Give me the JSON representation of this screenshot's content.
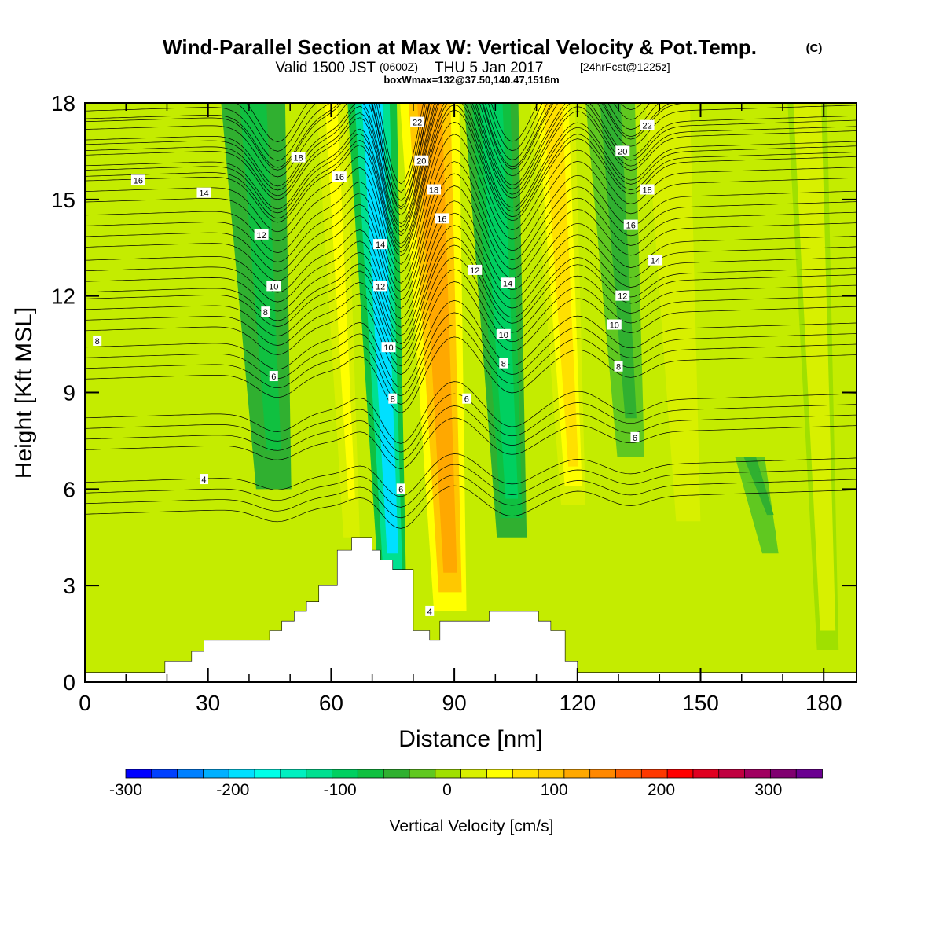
{
  "chart_data": {
    "type": "heatmap",
    "title": "Wind-Parallel Section at Max W: Vertical Velocity & Pot.Temp.",
    "title_mark": "(C)",
    "subtitle_valid": "Valid 1500 JST",
    "subtitle_z": "(0600Z)",
    "subtitle_date": "THU 5 Jan 2017",
    "subtitle_fcst": "[24hrFcst@1225z]",
    "subtitle_box": "boxWmax=132@37.50,140.47,1516m",
    "xlabel": "Distance [nm]",
    "ylabel": "Height [Kft MSL]",
    "xlim": [
      0,
      188
    ],
    "ylim": [
      0,
      18
    ],
    "x_ticks": [
      "0",
      "30",
      "60",
      "90",
      "120",
      "150",
      "180"
    ],
    "y_ticks": [
      "0",
      "3",
      "6",
      "9",
      "12",
      "15",
      "18"
    ],
    "x_tick_values": [
      0,
      30,
      60,
      90,
      120,
      150,
      180
    ],
    "y_tick_values": [
      0,
      3,
      6,
      9,
      12,
      15,
      18
    ],
    "colorbar": {
      "label": "Vertical Velocity [cm/s]",
      "tick_labels": [
        "-300",
        "-200",
        "-100",
        "0",
        "100",
        "200",
        "300"
      ],
      "tick_values": [
        -300,
        -200,
        -100,
        0,
        100,
        200,
        300
      ],
      "range": [
        -300,
        350
      ],
      "colors": [
        "#0000ff",
        "#0040ff",
        "#0080ff",
        "#00b0ff",
        "#00e0ff",
        "#00ffe8",
        "#00f0c0",
        "#00e090",
        "#00d060",
        "#10c040",
        "#30b030",
        "#60c820",
        "#a0e000",
        "#d8f000",
        "#ffff00",
        "#ffe000",
        "#ffc800",
        "#ffa800",
        "#ff8800",
        "#ff6000",
        "#ff3800",
        "#ff0000",
        "#e00020",
        "#c00040",
        "#a00060",
        "#800070",
        "#6a0090"
      ]
    },
    "terrain_profile": {
      "x": [
        0,
        19.5,
        19.5,
        26,
        26,
        29,
        29,
        45,
        45,
        48,
        48,
        51,
        51,
        54,
        54,
        57,
        57,
        61.5,
        61.5,
        65,
        65,
        70,
        70,
        72,
        72,
        75,
        75,
        80,
        80,
        84,
        84,
        86.5,
        86.5,
        92.5,
        92.5,
        98.5,
        98.5,
        110.5,
        110.5,
        113.5,
        113.5,
        117,
        117,
        120,
        120,
        188
      ],
      "y": [
        0.3,
        0.3,
        0.65,
        0.65,
        0.95,
        0.95,
        1.3,
        1.3,
        1.6,
        1.6,
        1.9,
        1.9,
        2.2,
        2.2,
        2.5,
        2.5,
        3.0,
        3.0,
        4.1,
        4.1,
        4.5,
        4.5,
        4.1,
        4.1,
        3.8,
        3.8,
        3.5,
        3.5,
        1.6,
        1.6,
        1.3,
        1.3,
        1.9,
        1.9,
        1.9,
        1.9,
        2.2,
        2.2,
        1.9,
        1.9,
        1.6,
        1.6,
        0.65,
        0.65,
        0.3,
        0.3
      ]
    },
    "vertical_velocity_bands": [
      {
        "x": 45,
        "width": 13,
        "w": -80,
        "top": 18,
        "bottom": 6.0
      },
      {
        "x": 64,
        "width": 6,
        "w": 40,
        "top": 18,
        "bottom": 4.5
      },
      {
        "x": 74,
        "width": 10,
        "w": -180,
        "top": 18,
        "bottom": 2.8
      },
      {
        "x": 88,
        "width": 12,
        "w": 132,
        "top": 18,
        "bottom": 2.2
      },
      {
        "x": 103,
        "width": 11,
        "w": -90,
        "top": 18,
        "bottom": 4.5
      },
      {
        "x": 118,
        "width": 9,
        "w": 70,
        "top": 18,
        "bottom": 5.5
      },
      {
        "x": 132,
        "width": 10,
        "w": -50,
        "top": 18,
        "bottom": 7.0
      },
      {
        "x": 146,
        "width": 9,
        "w": 30,
        "top": 18,
        "bottom": 5.0
      },
      {
        "x": 166,
        "width": 6,
        "w": -40,
        "top": 7.0,
        "bottom": 4.0
      },
      {
        "x": 180,
        "width": 8,
        "w": 20,
        "top": 18,
        "bottom": 1.0
      }
    ],
    "theta_contours": [
      {
        "label": "4",
        "base": 5.3
      },
      {
        "label": "6",
        "base": 7.3
      },
      {
        "label": "8",
        "base": 9.5
      },
      {
        "label": "10",
        "base": 11.0
      },
      {
        "label": "12",
        "base": 12.2
      },
      {
        "label": "14",
        "base": 13.6
      },
      {
        "label": "16",
        "base": 15.0
      },
      {
        "label": "18",
        "base": 15.8
      },
      {
        "label": "20",
        "base": 16.6
      },
      {
        "label": "22",
        "base": 17.5
      }
    ],
    "contour_labels": [
      {
        "text": "16",
        "x": 13,
        "y": 15.6
      },
      {
        "text": "14",
        "x": 29,
        "y": 15.2
      },
      {
        "text": "18",
        "x": 52,
        "y": 16.3
      },
      {
        "text": "16",
        "x": 62,
        "y": 15.7
      },
      {
        "text": "12",
        "x": 43,
        "y": 13.9
      },
      {
        "text": "10",
        "x": 46,
        "y": 12.3
      },
      {
        "text": "8",
        "x": 44,
        "y": 11.5
      },
      {
        "text": "6",
        "x": 46,
        "y": 9.5
      },
      {
        "text": "8",
        "x": 3,
        "y": 10.6
      },
      {
        "text": "4",
        "x": 29,
        "y": 6.3
      },
      {
        "text": "14",
        "x": 72,
        "y": 13.6
      },
      {
        "text": "12",
        "x": 72,
        "y": 12.3
      },
      {
        "text": "10",
        "x": 74,
        "y": 10.4
      },
      {
        "text": "8",
        "x": 75,
        "y": 8.8
      },
      {
        "text": "6",
        "x": 77,
        "y": 6.0
      },
      {
        "text": "22",
        "x": 81,
        "y": 17.4
      },
      {
        "text": "20",
        "x": 82,
        "y": 16.2
      },
      {
        "text": "18",
        "x": 85,
        "y": 15.3
      },
      {
        "text": "16",
        "x": 87,
        "y": 14.4
      },
      {
        "text": "12",
        "x": 95,
        "y": 12.8
      },
      {
        "text": "14",
        "x": 103,
        "y": 12.4
      },
      {
        "text": "10",
        "x": 102,
        "y": 10.8
      },
      {
        "text": "8",
        "x": 102,
        "y": 9.9
      },
      {
        "text": "6",
        "x": 93,
        "y": 8.8
      },
      {
        "text": "4",
        "x": 84,
        "y": 2.2
      },
      {
        "text": "22",
        "x": 137,
        "y": 17.3
      },
      {
        "text": "20",
        "x": 131,
        "y": 16.5
      },
      {
        "text": "18",
        "x": 137,
        "y": 15.3
      },
      {
        "text": "16",
        "x": 133,
        "y": 14.2
      },
      {
        "text": "14",
        "x": 139,
        "y": 13.1
      },
      {
        "text": "12",
        "x": 131,
        "y": 12.0
      },
      {
        "text": "10",
        "x": 129,
        "y": 11.1
      },
      {
        "text": "8",
        "x": 130,
        "y": 9.8
      },
      {
        "text": "6",
        "x": 134,
        "y": 7.6
      }
    ]
  }
}
